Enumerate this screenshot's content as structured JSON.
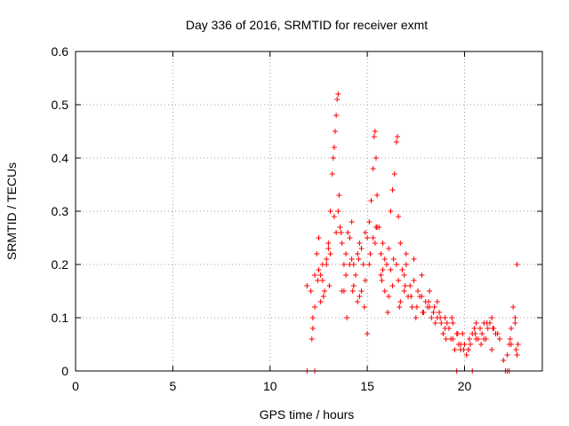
{
  "chart_data": {
    "type": "scatter",
    "title": "Day 336 of 2016, SRMTID for receiver exmt",
    "xlabel": "GPS time / hours",
    "ylabel": "SRMTID / TECUs",
    "xlim": [
      0,
      24
    ],
    "ylim": [
      0,
      0.6
    ],
    "x_ticks": [
      0,
      5,
      10,
      15,
      20
    ],
    "x_tick_labels": [
      "0",
      "5",
      "10",
      "15",
      "20"
    ],
    "y_ticks": [
      0,
      0.1,
      0.2,
      0.3,
      0.4,
      0.5,
      0.6
    ],
    "y_tick_labels": [
      "0",
      "0.1",
      "0.2",
      "0.3",
      "0.4",
      "0.5",
      "0.6"
    ],
    "grid": true,
    "series": [
      {
        "name": "SRMTID",
        "color": "#ff0000",
        "marker": "plus",
        "x": [
          11.9,
          12.1,
          12.2,
          12.3,
          12.4,
          12.5,
          12.6,
          12.7,
          12.8,
          12.9,
          13.0,
          13.1,
          13.2,
          13.25,
          13.3,
          13.35,
          13.4,
          13.45,
          13.5,
          13.55,
          13.6,
          13.7,
          13.8,
          13.9,
          14.0,
          14.1,
          14.2,
          14.3,
          14.4,
          14.5,
          14.6,
          14.7,
          14.8,
          14.9,
          15.0,
          15.1,
          15.2,
          15.3,
          15.35,
          15.4,
          15.45,
          15.5,
          15.6,
          15.7,
          15.8,
          15.9,
          16.0,
          16.1,
          16.2,
          16.3,
          16.4,
          16.5,
          16.55,
          16.6,
          16.7,
          16.8,
          16.9,
          17.0,
          17.2,
          17.4,
          17.6,
          17.8,
          18.0,
          18.2,
          18.4,
          18.6,
          18.8,
          19.0,
          19.2,
          19.4,
          19.6,
          19.8,
          20.0,
          20.2,
          20.4,
          20.6,
          20.8,
          21.0,
          21.2,
          21.4,
          21.6,
          21.8,
          22.0,
          22.2,
          22.4,
          22.5,
          22.6,
          22.7,
          22.75,
          12.3,
          12.5,
          12.7,
          12.9,
          13.1,
          13.3,
          13.5,
          13.7,
          13.9,
          14.1,
          14.3,
          14.5,
          14.7,
          14.9,
          15.1,
          15.3,
          15.5,
          15.7,
          15.9,
          16.1,
          16.3,
          16.5,
          16.7,
          16.9,
          17.1,
          17.3,
          17.5,
          17.7,
          17.9,
          18.1,
          18.3,
          18.5,
          18.7,
          18.9,
          19.1,
          19.3,
          19.5,
          19.7,
          19.9,
          20.1,
          20.3,
          20.5,
          20.7,
          20.9,
          21.1,
          21.3,
          21.5,
          21.7,
          22.3,
          22.6,
          12.2,
          12.6,
          13.0,
          13.4,
          13.8,
          14.2,
          14.6,
          15.0,
          15.4,
          15.8,
          16.2,
          16.6,
          17.0,
          17.4,
          17.8,
          18.2,
          18.6,
          19.0,
          19.4,
          19.8,
          20.2,
          20.6,
          21.0,
          21.4,
          22.4,
          22.7,
          12.15,
          12.45,
          12.75,
          13.05,
          13.65,
          13.95,
          14.25,
          14.55,
          14.85,
          15.15,
          15.45,
          15.75,
          16.05,
          16.35,
          16.65,
          16.95,
          17.25,
          17.55,
          17.85,
          18.15,
          18.45,
          18.75,
          19.05,
          19.35,
          19.65,
          19.95,
          20.25,
          20.55,
          20.85,
          21.15,
          21.45,
          22.35,
          22.65,
          11.9,
          12.3,
          19.6,
          20.4,
          22.1,
          22.2,
          22.3
        ],
        "y": [
          0.16,
          0.15,
          0.08,
          0.12,
          0.22,
          0.25,
          0.18,
          0.2,
          0.15,
          0.21,
          0.23,
          0.3,
          0.37,
          0.4,
          0.42,
          0.45,
          0.48,
          0.51,
          0.52,
          0.33,
          0.27,
          0.24,
          0.2,
          0.22,
          0.26,
          0.25,
          0.28,
          0.2,
          0.18,
          0.22,
          0.24,
          0.23,
          0.2,
          0.26,
          0.25,
          0.28,
          0.32,
          0.38,
          0.44,
          0.45,
          0.4,
          0.33,
          0.27,
          0.22,
          0.24,
          0.21,
          0.2,
          0.23,
          0.3,
          0.34,
          0.37,
          0.43,
          0.44,
          0.29,
          0.24,
          0.19,
          0.18,
          0.2,
          0.16,
          0.17,
          0.15,
          0.14,
          0.13,
          0.12,
          0.11,
          0.1,
          0.09,
          0.08,
          0.08,
          0.06,
          0.07,
          0.05,
          0.05,
          0.04,
          0.07,
          0.06,
          0.08,
          0.09,
          0.08,
          0.1,
          0.07,
          0.06,
          0.02,
          0.03,
          0.08,
          0.12,
          0.09,
          0.2,
          0.05,
          0.18,
          0.19,
          0.17,
          0.2,
          0.22,
          0.29,
          0.3,
          0.15,
          0.18,
          0.2,
          0.16,
          0.13,
          0.15,
          0.17,
          0.2,
          0.25,
          0.27,
          0.18,
          0.15,
          0.14,
          0.16,
          0.2,
          0.13,
          0.15,
          0.14,
          0.12,
          0.1,
          0.14,
          0.11,
          0.12,
          0.1,
          0.09,
          0.11,
          0.07,
          0.09,
          0.06,
          0.04,
          0.05,
          0.07,
          0.03,
          0.05,
          0.08,
          0.06,
          0.07,
          0.06,
          0.09,
          0.08,
          0.07,
          0.05,
          0.1,
          0.1,
          0.13,
          0.24,
          0.26,
          0.15,
          0.21,
          0.14,
          0.07,
          0.24,
          0.19,
          0.19,
          0.17,
          0.22,
          0.21,
          0.18,
          0.15,
          0.13,
          0.1,
          0.09,
          0.04,
          0.04,
          0.09,
          0.06,
          0.04,
          0.05,
          0.03,
          0.06,
          0.17,
          0.14,
          0.16,
          0.26,
          0.1,
          0.15,
          0.21,
          0.12,
          0.22,
          0.27,
          0.17,
          0.11,
          0.21,
          0.12,
          0.16,
          0.14,
          0.12,
          0.11,
          0.13,
          0.12,
          0.1,
          0.06,
          0.1,
          0.07,
          0.04,
          0.06,
          0.07,
          0.05,
          0.09,
          0.08,
          0.06,
          0.04,
          0,
          0,
          0,
          0,
          0,
          0,
          0
        ]
      }
    ]
  }
}
